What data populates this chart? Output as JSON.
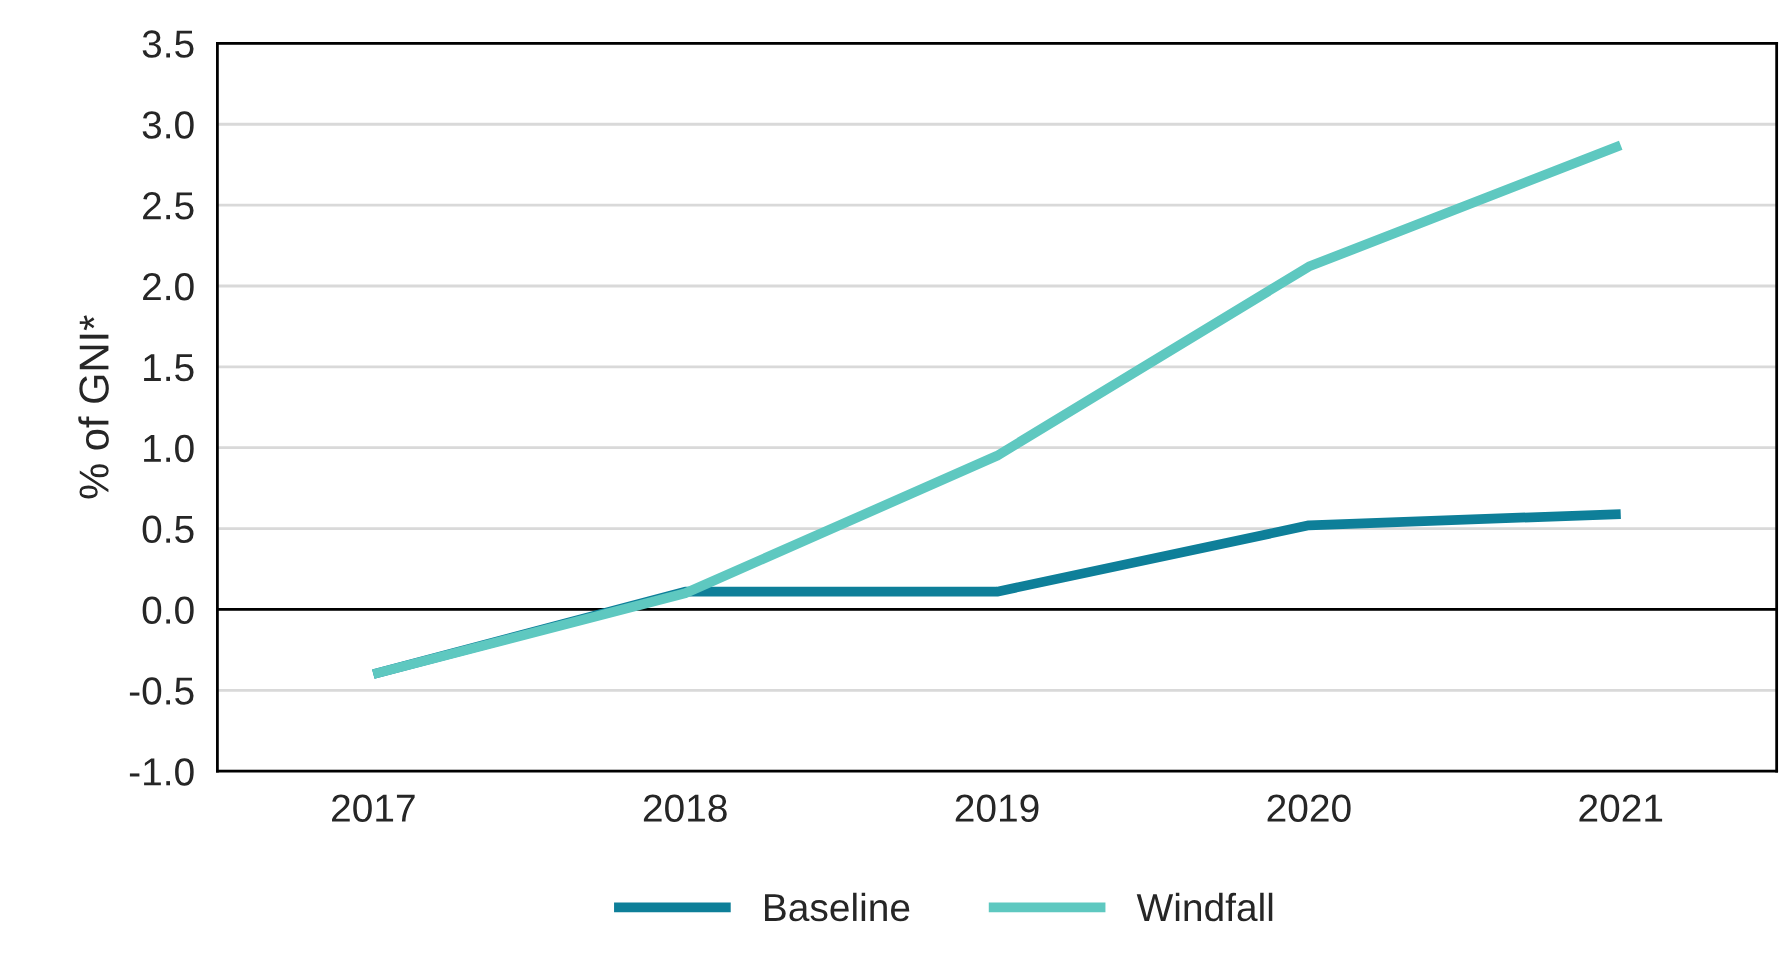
{
  "chart_data": {
    "type": "line",
    "ylabel": "% of GNI*",
    "categories": [
      "2017",
      "2018",
      "2019",
      "2020",
      "2021"
    ],
    "series": [
      {
        "name": "Baseline",
        "color": "#0e7f99",
        "values": [
          -0.4,
          0.11,
          0.11,
          0.52,
          0.59
        ]
      },
      {
        "name": "Windfall",
        "color": "#5ec8c0",
        "values": [
          -0.4,
          0.1,
          0.95,
          2.12,
          2.87
        ]
      }
    ],
    "ylim": [
      -1.0,
      3.5
    ],
    "yticks": [
      {
        "value": -1.0,
        "label": "-1.0"
      },
      {
        "value": -0.5,
        "label": "-0.5"
      },
      {
        "value": 0.0,
        "label": "0.0"
      },
      {
        "value": 0.5,
        "label": "0.5"
      },
      {
        "value": 1.0,
        "label": "1.0"
      },
      {
        "value": 1.5,
        "label": "1.5"
      },
      {
        "value": 2.0,
        "label": "2.0"
      },
      {
        "value": 2.5,
        "label": "2.5"
      },
      {
        "value": 3.0,
        "label": "3.0"
      },
      {
        "value": 3.5,
        "label": "3.5"
      }
    ],
    "ref_lines": [
      {
        "axis": "y",
        "value": 0,
        "color": "#000000"
      }
    ],
    "grid": "y",
    "legend": "bottom",
    "line_style": "solid",
    "marker": "none"
  }
}
